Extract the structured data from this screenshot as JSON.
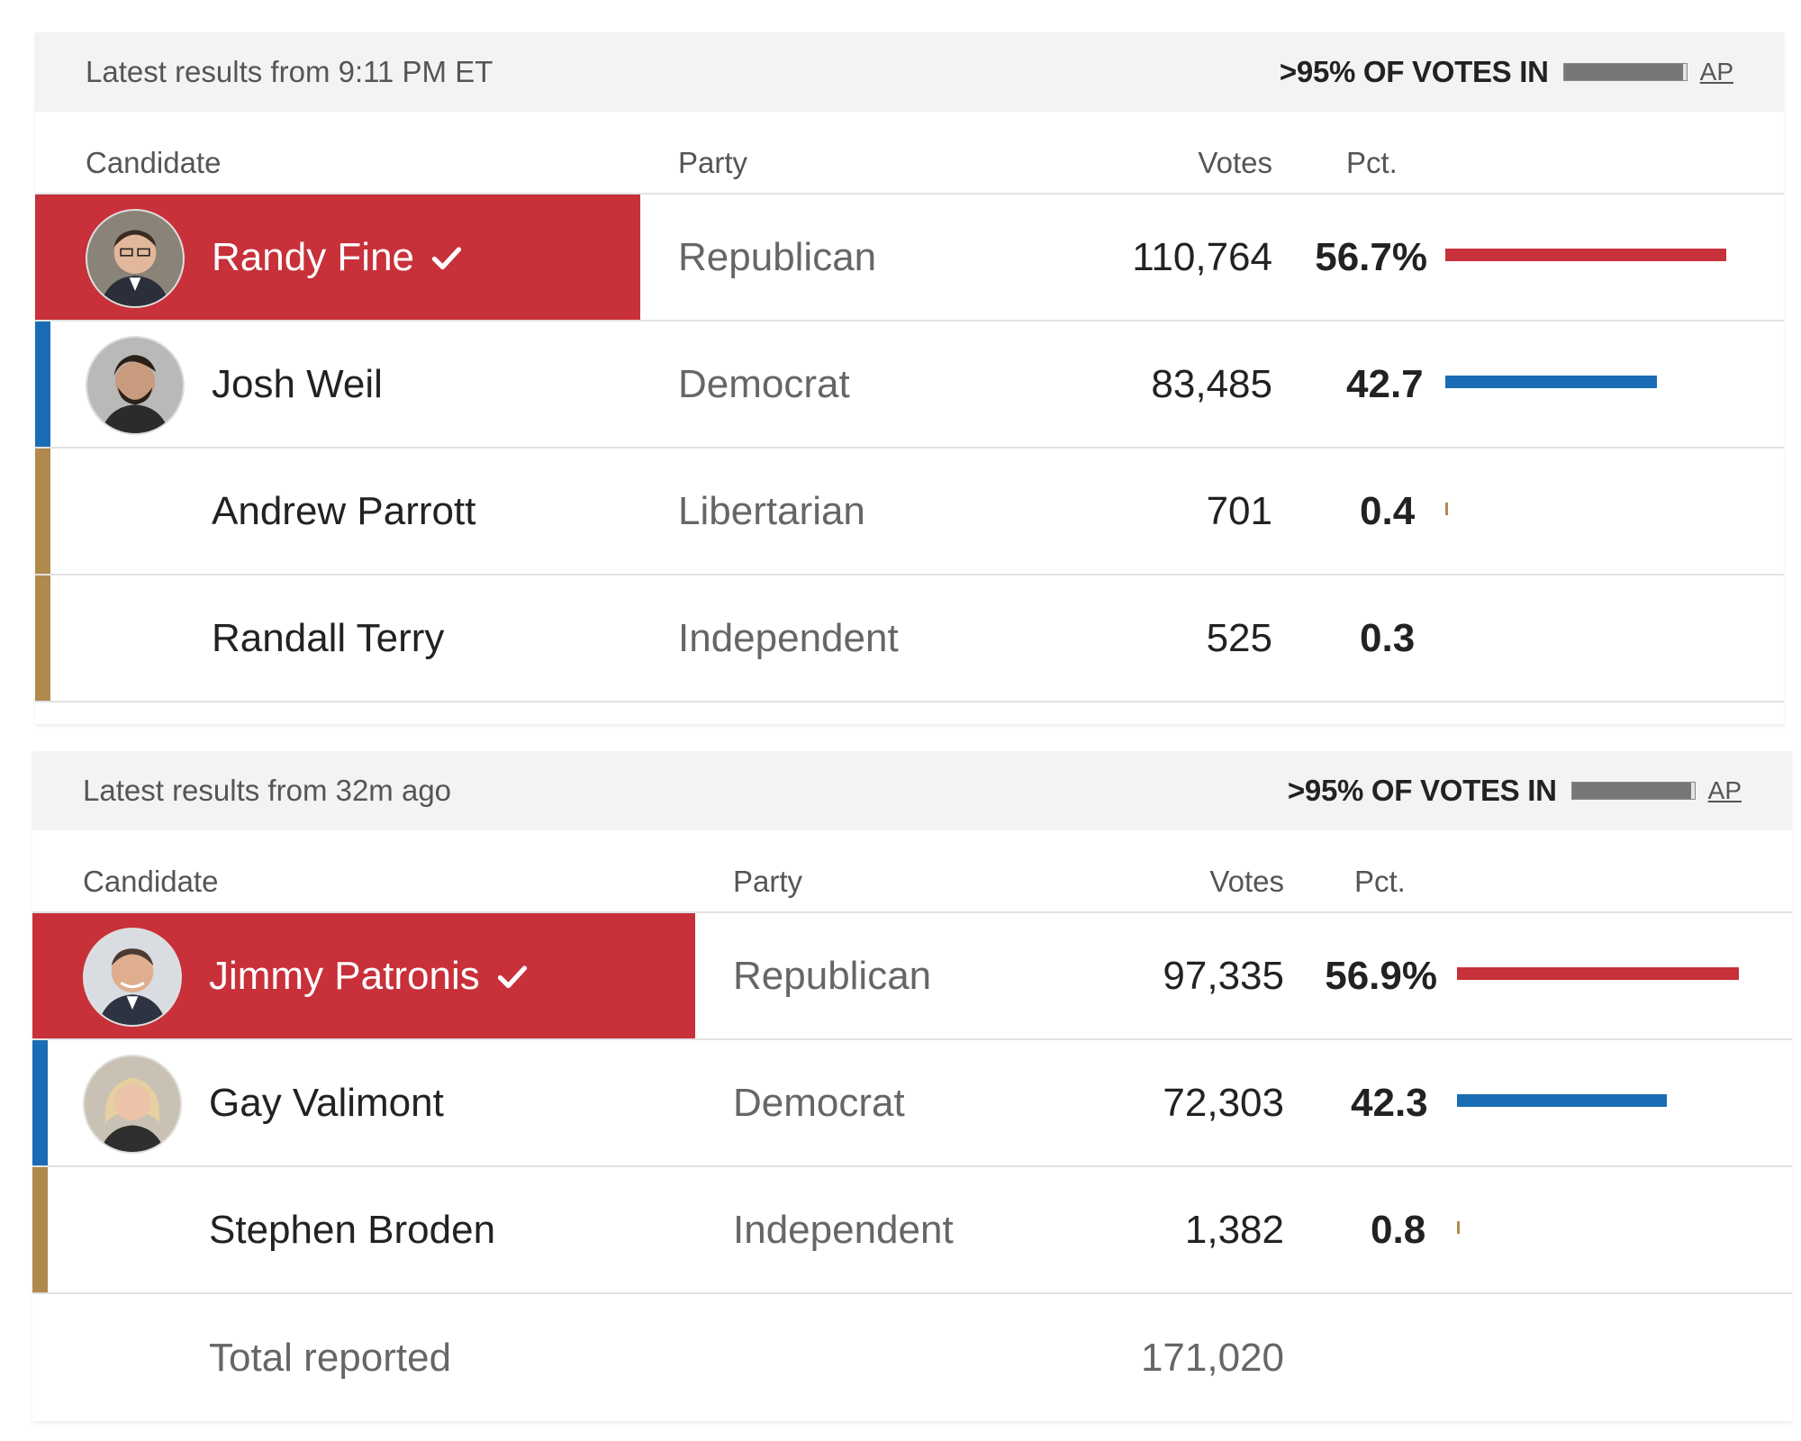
{
  "colors": {
    "republican": "#c8303a",
    "democrat": "#1a6db4",
    "other": "#b08a4c"
  },
  "races": [
    {
      "latest": "Latest results from 9:11 PM ET",
      "votes_in": ">95% OF VOTES IN",
      "reporting_fraction": 0.97,
      "source": "AP",
      "headers": {
        "candidate": "Candidate",
        "party": "Party",
        "votes": "Votes",
        "pct": "Pct."
      },
      "candidates": [
        {
          "name": "Randy Fine",
          "party": "Republican",
          "votes": "110,764",
          "pct": "56.7%",
          "pct_value": 56.7,
          "winner": true,
          "photo": "candidate-photo"
        },
        {
          "name": "Josh Weil",
          "party": "Democrat",
          "votes": "83,485",
          "pct": "42.7",
          "pct_value": 42.7,
          "winner": false,
          "photo": "candidate-photo"
        },
        {
          "name": "Andrew Parrott",
          "party": "Libertarian",
          "votes": "701",
          "pct": "0.4",
          "pct_value": 0.4,
          "winner": false
        },
        {
          "name": "Randall Terry",
          "party": "Independent",
          "votes": "525",
          "pct": "0.3",
          "pct_value": 0.3,
          "winner": false
        }
      ]
    },
    {
      "latest": "Latest results from 32m ago",
      "votes_in": ">95% OF VOTES IN",
      "reporting_fraction": 0.97,
      "source": "AP",
      "headers": {
        "candidate": "Candidate",
        "party": "Party",
        "votes": "Votes",
        "pct": "Pct."
      },
      "candidates": [
        {
          "name": "Jimmy Patronis",
          "party": "Republican",
          "votes": "97,335",
          "pct": "56.9%",
          "pct_value": 56.9,
          "winner": true,
          "photo": "candidate-photo"
        },
        {
          "name": "Gay Valimont",
          "party": "Democrat",
          "votes": "72,303",
          "pct": "42.3",
          "pct_value": 42.3,
          "winner": false,
          "photo": "candidate-photo"
        },
        {
          "name": "Stephen Broden",
          "party": "Independent",
          "votes": "1,382",
          "pct": "0.8",
          "pct_value": 0.8,
          "winner": false
        }
      ],
      "total_label": "Total reported",
      "total_votes": "171,020"
    }
  ]
}
